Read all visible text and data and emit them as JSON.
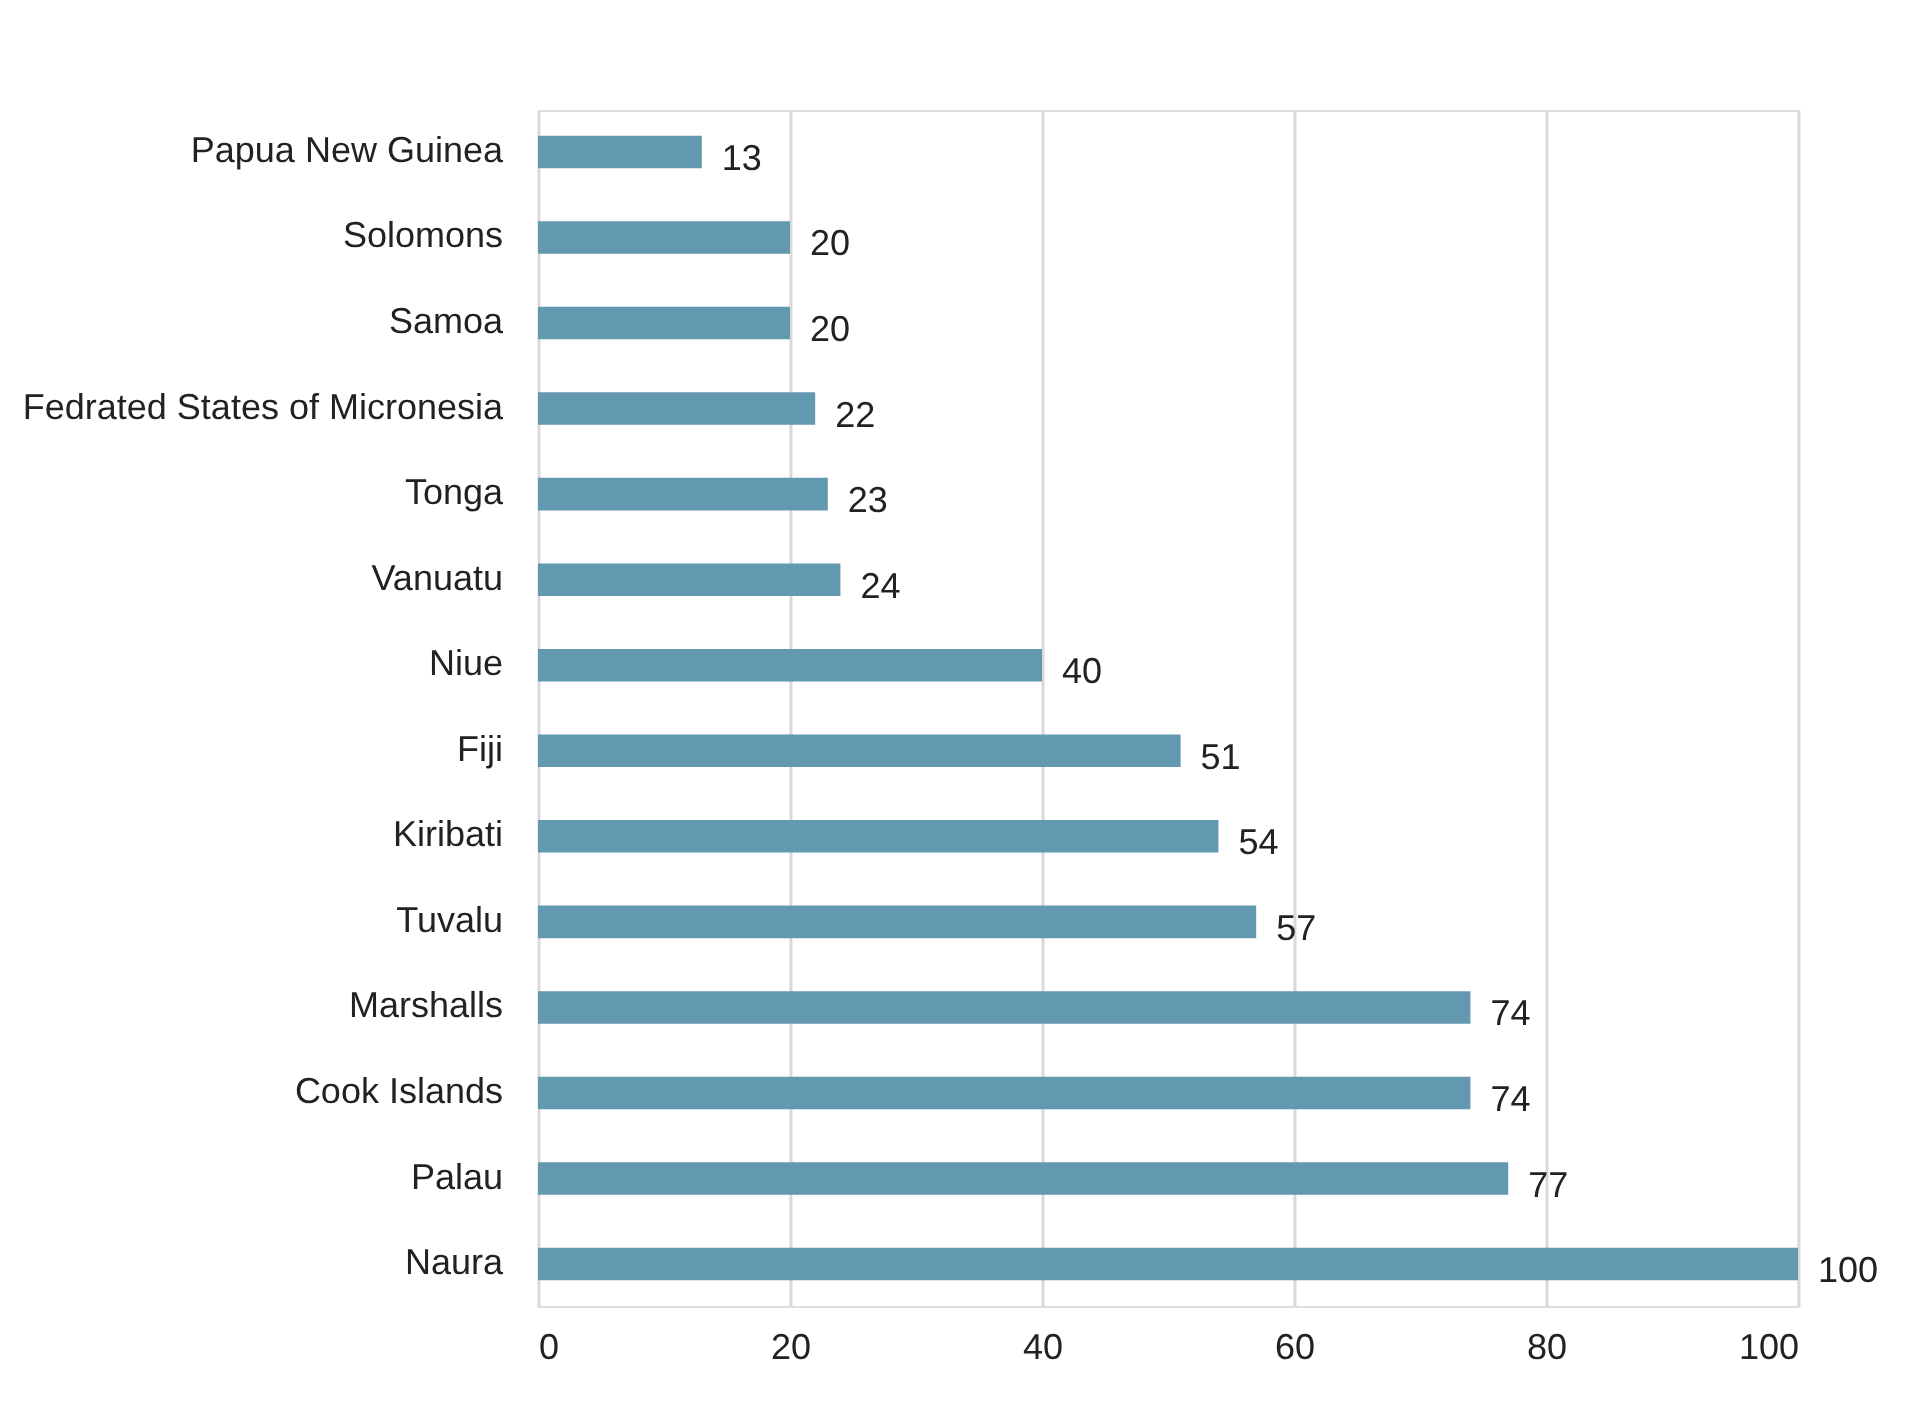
{
  "chart_data": {
    "type": "bar",
    "orientation": "horizontal",
    "categories": [
      "Papua New Guinea",
      "Solomons",
      "Samoa",
      "Fedrated States of Micronesia",
      "Tonga",
      "Vanuatu",
      "Niue",
      "Fiji",
      "Kiribati",
      "Tuvalu",
      "Marshalls",
      "Cook Islands",
      "Palau",
      "Naura"
    ],
    "values": [
      13,
      20,
      20,
      22,
      23,
      24,
      40,
      51,
      54,
      57,
      74,
      74,
      77,
      100
    ],
    "color": "#6399b0",
    "xlim": [
      0,
      100
    ],
    "xticks": [
      0,
      20,
      40,
      60,
      80,
      100
    ],
    "grid": "x",
    "data_labels": true
  }
}
